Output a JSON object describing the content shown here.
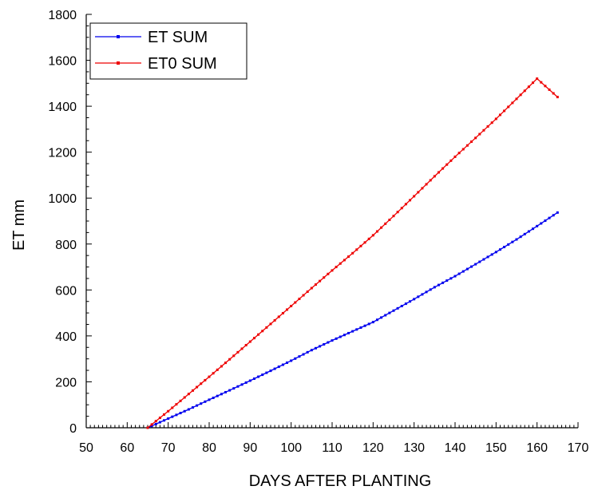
{
  "chart_data": {
    "type": "line",
    "xlabel": "DAYS AFTER PLANTING",
    "ylabel": "ET  mm",
    "xlim": [
      50,
      170
    ],
    "ylim": [
      0,
      1800
    ],
    "x_ticks": [
      50,
      60,
      70,
      80,
      90,
      100,
      110,
      120,
      130,
      140,
      150,
      160,
      170
    ],
    "y_ticks": [
      0,
      200,
      400,
      600,
      800,
      1000,
      1200,
      1400,
      1600,
      1800
    ],
    "grid": false,
    "legend_position": "top-left",
    "x": [
      65,
      70,
      75,
      80,
      85,
      90,
      95,
      100,
      105,
      110,
      115,
      120,
      125,
      130,
      135,
      140,
      145,
      150,
      155,
      160,
      165
    ],
    "series": [
      {
        "name": "ET SUM",
        "color": "#0000ee",
        "values": [
          0,
          40,
          80,
          122,
          163,
          205,
          248,
          292,
          338,
          380,
          420,
          460,
          510,
          560,
          612,
          660,
          712,
          765,
          820,
          878,
          937
        ]
      },
      {
        "name": "ET0 SUM",
        "color": "#ee0000",
        "values": [
          0,
          72,
          147,
          222,
          298,
          375,
          452,
          530,
          608,
          685,
          760,
          838,
          922,
          1008,
          1095,
          1180,
          1262,
          1345,
          1432,
          1520,
          1440
        ]
      }
    ]
  }
}
